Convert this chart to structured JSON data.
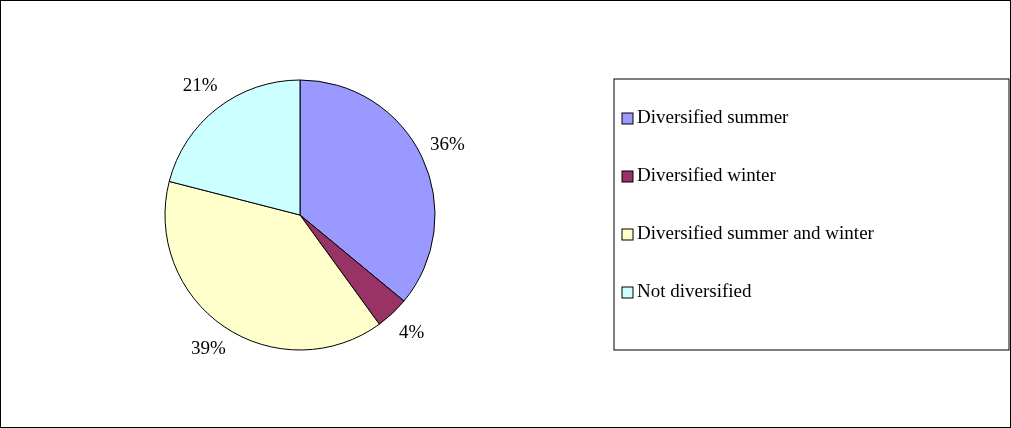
{
  "chart_data": {
    "type": "pie",
    "categories": [
      "Diversified summer",
      "Diversified winter",
      "Diversified summer and winter",
      "Not diversified"
    ],
    "values": [
      36,
      4,
      39,
      21
    ],
    "colors": [
      "#9999ff",
      "#993366",
      "#ffffcc",
      "#ccffff"
    ],
    "value_labels": [
      "36%",
      "4%",
      "39%",
      "21%"
    ],
    "legend": "right"
  }
}
